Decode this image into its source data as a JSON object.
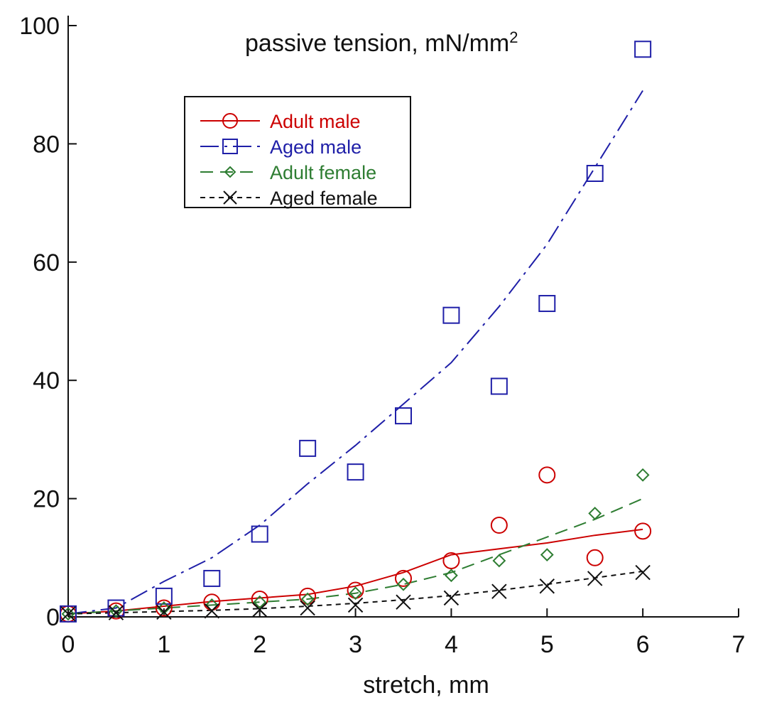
{
  "chart_data": {
    "type": "scatter",
    "title": {
      "text": "passive tension, mN/mm",
      "superscript": "2"
    },
    "xlabel": "stretch, mm",
    "ylabel": "",
    "xlim": [
      0,
      7
    ],
    "ylim": [
      0,
      100
    ],
    "x_ticks": [
      "0",
      "1",
      "2",
      "3",
      "4",
      "5",
      "6",
      "7"
    ],
    "y_ticks": [
      "0",
      "20",
      "40",
      "60",
      "80",
      "100"
    ],
    "grid": false,
    "legend_position": "top-left",
    "series": [
      {
        "name": "Adult male",
        "color": "#cc0000",
        "marker": "circle",
        "line_style": "solid",
        "x": [
          0,
          0.5,
          1,
          1.5,
          2,
          2.5,
          3,
          3.5,
          4,
          4.5,
          5,
          5.5,
          6
        ],
        "points": [
          0.5,
          1.0,
          1.5,
          2.5,
          3.0,
          3.5,
          4.5,
          6.5,
          9.5,
          15.5,
          24.0,
          10.0,
          14.5
        ],
        "fit": [
          0.5,
          1.0,
          1.8,
          2.6,
          3.2,
          3.8,
          5.2,
          7.5,
          10.5,
          11.5,
          12.5,
          13.8,
          14.8
        ]
      },
      {
        "name": "Aged male",
        "color": "#1f1fa8",
        "marker": "square",
        "line_style": "dashdot",
        "x": [
          0,
          0.5,
          1,
          1.5,
          2,
          2.5,
          3,
          3.5,
          4,
          4.5,
          5,
          5.5,
          6
        ],
        "points": [
          0.5,
          1.5,
          3.5,
          6.5,
          14.0,
          28.5,
          24.5,
          34.0,
          51.0,
          39.0,
          53.0,
          75.0,
          96.0
        ],
        "fit": [
          0.5,
          1.5,
          6.0,
          10.0,
          15.5,
          22.5,
          29.0,
          36.0,
          43.0,
          52.5,
          63.0,
          76.0,
          89.0
        ]
      },
      {
        "name": "Adult female",
        "color": "#2e7d32",
        "marker": "diamond",
        "line_style": "dashed",
        "x": [
          0,
          0.5,
          1,
          1.5,
          2,
          2.5,
          3,
          3.5,
          4,
          4.5,
          5,
          5.5,
          6
        ],
        "points": [
          0.5,
          1.0,
          1.5,
          2.0,
          2.5,
          3.0,
          4.0,
          5.5,
          7.0,
          9.5,
          10.5,
          17.5,
          24.0
        ],
        "fit": [
          0.5,
          1.0,
          1.5,
          2.0,
          2.5,
          3.0,
          4.0,
          5.5,
          7.5,
          10.5,
          13.5,
          16.5,
          20.0
        ]
      },
      {
        "name": "Aged female",
        "color": "#111111",
        "marker": "x",
        "line_style": "dotted",
        "x": [
          0,
          0.5,
          1,
          1.5,
          2,
          2.5,
          3,
          3.5,
          4,
          4.5,
          5,
          5.5,
          6
        ],
        "points": [
          0.5,
          0.7,
          0.8,
          1.0,
          1.2,
          1.5,
          2.0,
          2.5,
          3.2,
          4.3,
          5.2,
          6.5,
          7.5
        ],
        "fit": [
          0.5,
          0.7,
          0.9,
          1.1,
          1.4,
          1.8,
          2.3,
          2.9,
          3.6,
          4.5,
          5.5,
          6.6,
          7.7
        ]
      }
    ]
  }
}
